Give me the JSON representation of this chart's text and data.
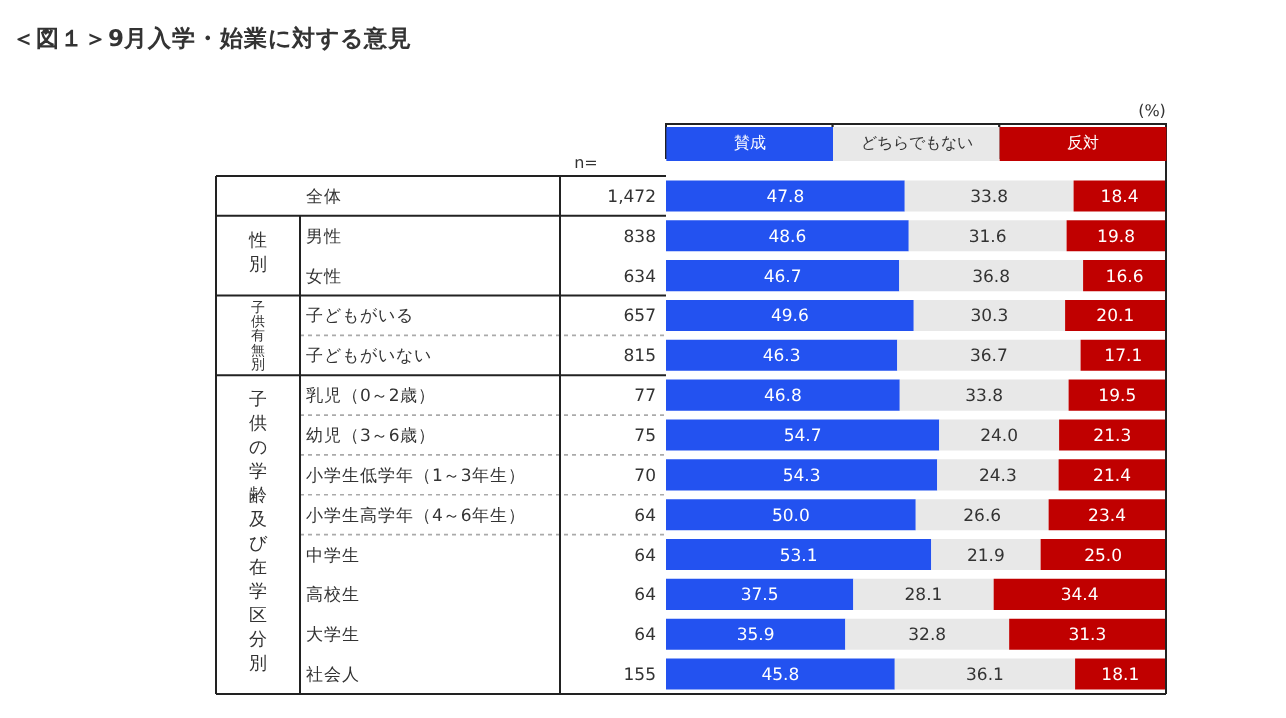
{
  "chart_data": {
    "type": "bar",
    "orientation": "horizontal",
    "stacked": true,
    "title": "＜図１＞9月入学・始業に対する意見",
    "categories": [
      "全体",
      "男性",
      "女性",
      "子どもがいる",
      "子どもがいない",
      "乳児（0～2歳）",
      "幼児（3～6歳）",
      "小学生低学年（1～3年生）",
      "小学生高学年（4～6年生）",
      "中学生",
      "高校生",
      "大学生",
      "社会人"
    ],
    "series": [
      {
        "name": "賛成",
        "color": "#2352f0",
        "values": [
          47.8,
          48.6,
          46.7,
          49.6,
          46.3,
          46.8,
          54.7,
          54.3,
          50.0,
          53.1,
          37.5,
          35.9,
          45.8
        ],
        "value_labels": [
          "47.8",
          "48.6",
          "46.7",
          "49.6",
          "46.3",
          "46.8",
          "54.7",
          "54.3",
          "50.0",
          "53.1",
          "37.5",
          "35.9",
          "45.8"
        ]
      },
      {
        "name": "どちらでもない",
        "color": "#e8e8e8",
        "values": [
          33.8,
          31.6,
          36.8,
          30.3,
          36.7,
          33.8,
          24.0,
          24.3,
          26.6,
          21.9,
          28.1,
          32.8,
          36.1
        ],
        "value_labels": [
          "33.8",
          "31.6",
          "36.8",
          "30.3",
          "36.7",
          "33.8",
          "24.0",
          "24.3",
          "26.6",
          "21.9",
          "28.1",
          "32.8",
          "36.1"
        ]
      },
      {
        "name": "反対",
        "color": "#c00000",
        "values": [
          18.4,
          19.8,
          16.6,
          20.1,
          17.1,
          19.5,
          21.3,
          21.4,
          23.4,
          25.0,
          34.4,
          31.3,
          18.1
        ],
        "value_labels": [
          "18.4",
          "19.8",
          "16.6",
          "20.1",
          "17.1",
          "19.5",
          "21.3",
          "21.4",
          "23.4",
          "25.0",
          "34.4",
          "31.3",
          "18.1"
        ]
      }
    ],
    "legend": "top",
    "annotations": [
      "(%)",
      "n=",
      "性別",
      "子供有無別",
      "子供の学齢及び在学区分別",
      "1,472",
      "838",
      "634",
      "657",
      "815",
      "77",
      "75",
      "70",
      "64",
      "64",
      "64",
      "64",
      "155"
    ]
  }
}
